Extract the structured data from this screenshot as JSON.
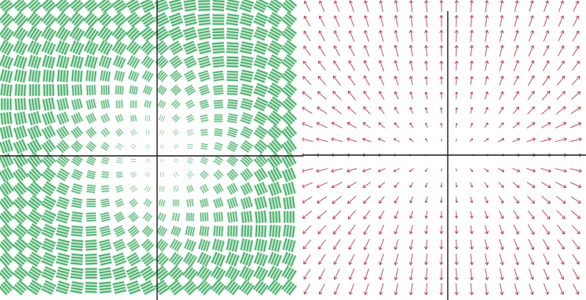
{
  "panels": [
    {
      "id": "rotation-field",
      "kind": "tensor-rotation-field",
      "color": "#2f9e55",
      "fill": "#a8ddb8",
      "x_range": [
        -6,
        6
      ],
      "y_range": [
        -6,
        6
      ],
      "grid_step": 0.6
    },
    {
      "id": "radial-field",
      "kind": "radial-vector-field",
      "color": "#b0304a",
      "x_range": [
        -6,
        6
      ],
      "y_range": [
        -6,
        6
      ],
      "grid_step": 0.6
    }
  ],
  "colors": {
    "axis": "#1a1a1a",
    "background": "#ffffff",
    "green": "#2f9e55",
    "green_fill": "#a8ddb8",
    "red": "#b0304a"
  },
  "icons": {
    "glyph": "rotated-hatched-square",
    "arrow": "vector-arrow"
  }
}
